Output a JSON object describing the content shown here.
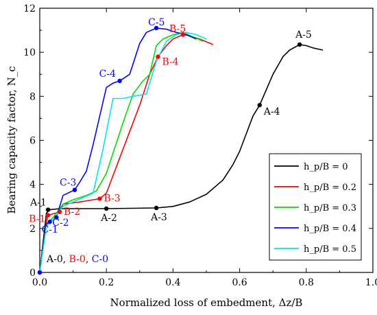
{
  "chart_data": {
    "type": "line",
    "xlabel": "Normalized loss of embedment, Δz/B",
    "ylabel": "Bearing capacity factor, N_c",
    "xlim": [
      0.0,
      1.0
    ],
    "ylim": [
      0,
      12
    ],
    "x_ticks": [
      "0.0",
      "0.2",
      "0.4",
      "0.6",
      "0.8",
      "1.0"
    ],
    "y_ticks": [
      "0",
      "2",
      "4",
      "6",
      "8",
      "10",
      "12"
    ],
    "grid": false,
    "legend_position": "lower-right",
    "series": [
      {
        "name": "h_p/B = 0",
        "color": "#000000",
        "x": [
          0.0,
          0.02,
          0.03,
          0.06,
          0.2,
          0.35,
          0.4,
          0.45,
          0.5,
          0.55,
          0.58,
          0.6,
          0.62,
          0.64,
          0.66,
          0.68,
          0.7,
          0.73,
          0.75,
          0.78,
          0.8,
          0.82,
          0.85
        ],
        "y": [
          0.0,
          2.7,
          2.85,
          2.9,
          2.9,
          2.93,
          3.0,
          3.2,
          3.55,
          4.2,
          4.9,
          5.5,
          6.3,
          7.1,
          7.6,
          8.3,
          9.0,
          9.8,
          10.1,
          10.35,
          10.3,
          10.2,
          10.1
        ],
        "markers": [
          {
            "label": "A-0",
            "x": 0.0,
            "y": 0.0
          },
          {
            "label": "A-1",
            "x": 0.025,
            "y": 2.85
          },
          {
            "label": "A-2",
            "x": 0.2,
            "y": 2.9
          },
          {
            "label": "A-3",
            "x": 0.35,
            "y": 2.93
          },
          {
            "label": "A-4",
            "x": 0.66,
            "y": 7.6
          },
          {
            "label": "A-5",
            "x": 0.78,
            "y": 10.35
          }
        ]
      },
      {
        "name": "h_p/B = 0.2",
        "color": "#ff0000",
        "x": [
          0.0,
          0.02,
          0.025,
          0.06,
          0.07,
          0.12,
          0.18,
          0.2,
          0.25,
          0.3,
          0.33,
          0.355,
          0.38,
          0.4,
          0.43,
          0.45,
          0.48,
          0.52
        ],
        "y": [
          0.0,
          2.3,
          2.6,
          2.75,
          3.1,
          3.2,
          3.35,
          3.6,
          5.6,
          7.6,
          9.0,
          9.8,
          10.3,
          10.6,
          10.8,
          10.75,
          10.6,
          10.35
        ],
        "markers": [
          {
            "label": "B-0",
            "x": 0.0,
            "y": 0.0
          },
          {
            "label": "B-1",
            "x": 0.025,
            "y": 2.6
          },
          {
            "label": "B-2",
            "x": 0.06,
            "y": 2.75
          },
          {
            "label": "B-3",
            "x": 0.18,
            "y": 3.35
          },
          {
            "label": "B-4",
            "x": 0.355,
            "y": 9.8
          },
          {
            "label": "B-5",
            "x": 0.43,
            "y": 10.8
          }
        ]
      },
      {
        "name": "h_p/B = 0.3",
        "color": "#00dd00",
        "x": [
          0.0,
          0.02,
          0.04,
          0.07,
          0.1,
          0.14,
          0.17,
          0.2,
          0.25,
          0.28,
          0.31,
          0.33,
          0.35,
          0.37,
          0.4,
          0.43,
          0.46,
          0.49
        ],
        "y": [
          0.0,
          2.2,
          2.5,
          3.1,
          3.3,
          3.5,
          3.7,
          4.5,
          6.8,
          8.1,
          8.7,
          9.0,
          10.3,
          10.6,
          10.8,
          10.9,
          10.7,
          10.5
        ],
        "markers": []
      },
      {
        "name": "h_p/B = 0.4",
        "color": "#0000ff",
        "x": [
          0.0,
          0.02,
          0.04,
          0.05,
          0.07,
          0.105,
          0.12,
          0.14,
          0.16,
          0.18,
          0.2,
          0.22,
          0.24,
          0.27,
          0.3,
          0.32,
          0.35,
          0.38,
          0.41,
          0.44,
          0.47
        ],
        "y": [
          0.0,
          2.2,
          2.4,
          2.5,
          3.5,
          3.75,
          4.1,
          4.6,
          5.8,
          7.1,
          8.4,
          8.6,
          8.7,
          9.0,
          10.4,
          10.9,
          11.1,
          11.05,
          10.9,
          10.8,
          10.6
        ],
        "markers": [
          {
            "label": "C-0",
            "x": 0.0,
            "y": 0.0
          },
          {
            "label": "C-1",
            "x": 0.03,
            "y": 2.3
          },
          {
            "label": "C-2",
            "x": 0.05,
            "y": 2.5
          },
          {
            "label": "C-3",
            "x": 0.105,
            "y": 3.75
          },
          {
            "label": "C-4",
            "x": 0.24,
            "y": 8.7
          },
          {
            "label": "C-5",
            "x": 0.35,
            "y": 11.1
          }
        ]
      },
      {
        "name": "h_p/B = 0.5",
        "color": "#00e5ee",
        "x": [
          0.0,
          0.02,
          0.04,
          0.07,
          0.1,
          0.13,
          0.16,
          0.19,
          0.22,
          0.25,
          0.28,
          0.32,
          0.35,
          0.38,
          0.41,
          0.44,
          0.47,
          0.5
        ],
        "y": [
          0.0,
          2.1,
          2.4,
          3.0,
          3.2,
          3.4,
          3.6,
          5.6,
          7.9,
          7.9,
          8.0,
          8.1,
          9.6,
          10.5,
          10.8,
          10.9,
          10.8,
          10.6
        ],
        "markers": []
      }
    ],
    "annotations": [
      {
        "text": "A-0, ",
        "color": "#000000"
      },
      {
        "text": "B-0",
        "color": "#ff0000"
      },
      {
        "text": ", ",
        "color": "#000000"
      },
      {
        "text": "C-0",
        "color": "#0000ff"
      }
    ]
  }
}
